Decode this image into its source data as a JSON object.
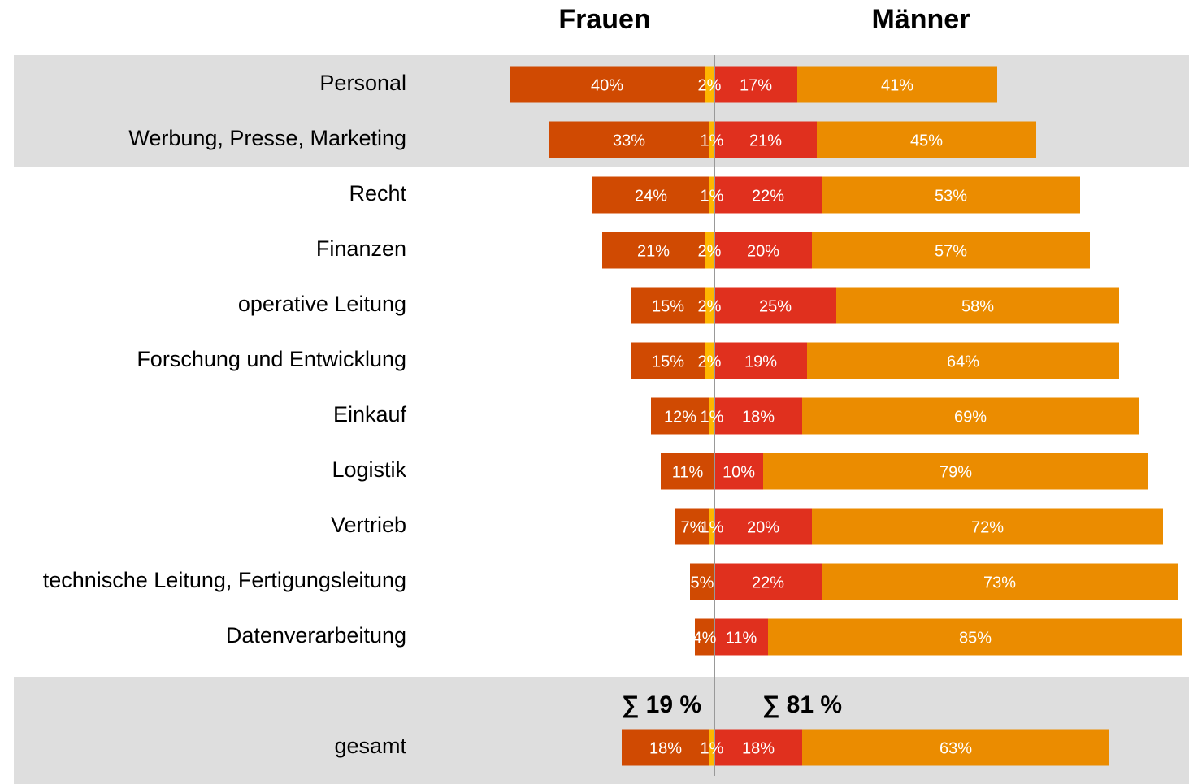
{
  "chart_data": {
    "type": "diverging-bar",
    "categories": [
      "Personal",
      "Werbung, Presse, Marketing",
      "Recht",
      "Finanzen",
      "operative Leitung",
      "Forschung und Entwicklung",
      "Einkauf",
      "Logistik",
      "Vertrieb",
      "technische Leitung, Fertigungsleitung",
      "Datenverarbeitung",
      "gesamt"
    ],
    "groups": [
      {
        "name": "Frauen",
        "total_label": "∑ 19 %",
        "series": [
          {
            "color": "#ffb600",
            "values": [
              2,
              1,
              1,
              2,
              2,
              2,
              1,
              null,
              1,
              null,
              null,
              1
            ],
            "value_labels": [
              "2%",
              "1%",
              "1%",
              "2%",
              "2%",
              "2%",
              "1%",
              null,
              "1%",
              null,
              null,
              "1%"
            ]
          },
          {
            "color": "#d04a02",
            "values": [
              40,
              33,
              24,
              21,
              15,
              15,
              12,
              11,
              7,
              5,
              4,
              18
            ],
            "value_labels": [
              "40%",
              "33%",
              "24%",
              "21%",
              "15%",
              "15%",
              "12%",
              "11%",
              "7%",
              "5%",
              "4%",
              "18%"
            ]
          }
        ]
      },
      {
        "name": "Männer",
        "total_label": "∑ 81 %",
        "series": [
          {
            "color": "#e0301e",
            "values": [
              17,
              21,
              22,
              20,
              25,
              19,
              18,
              10,
              20,
              22,
              11,
              18
            ],
            "value_labels": [
              "17%",
              "21%",
              "22%",
              "20%",
              "25%",
              "19%",
              "18%",
              "10%",
              "20%",
              "22%",
              "11%",
              "18%"
            ]
          },
          {
            "color": "#eb8c00",
            "values": [
              41,
              45,
              53,
              57,
              58,
              64,
              69,
              79,
              72,
              73,
              85,
              63
            ],
            "value_labels": [
              "41%",
              "45%",
              "53%",
              "57%",
              "58%",
              "64%",
              "69%",
              "79%",
              "72%",
              "73%",
              "85%",
              "63%"
            ]
          }
        ]
      }
    ]
  }
}
